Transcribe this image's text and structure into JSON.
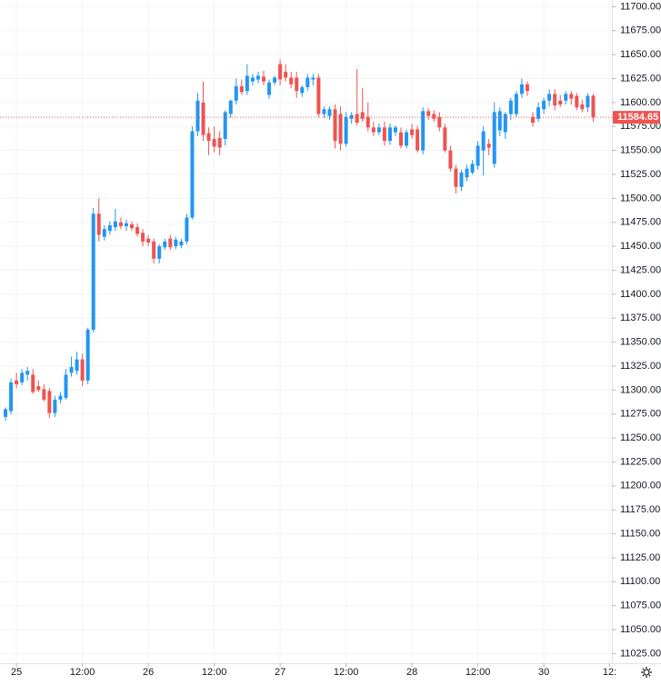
{
  "chart_data": {
    "type": "candlestick",
    "up_color": "#2196f3",
    "down_color": "#ef5350",
    "x": [
      -2,
      -1,
      0,
      1,
      2,
      3,
      4,
      5,
      6,
      7,
      8,
      9,
      10,
      11,
      12,
      13,
      14,
      15,
      16,
      17,
      18,
      19,
      20,
      21,
      22,
      23,
      24,
      25,
      26,
      27,
      28,
      29,
      30,
      31,
      32,
      33,
      34,
      35,
      36,
      37,
      38,
      39,
      40,
      41,
      42,
      43,
      44,
      45,
      46,
      47,
      48,
      49,
      50,
      51,
      52,
      53,
      54,
      55,
      56,
      57,
      58,
      59,
      60,
      61,
      62,
      63,
      64,
      65,
      66,
      67,
      68,
      69,
      70,
      71,
      72,
      73,
      74,
      75,
      76,
      77,
      78,
      79,
      80,
      81,
      82,
      83,
      84,
      85,
      86,
      87,
      88,
      89,
      90,
      91,
      92,
      93,
      94,
      95,
      96,
      97,
      98,
      99,
      100,
      101,
      102,
      103,
      104,
      105
    ],
    "open": [
      11272,
      11278,
      11310,
      11308,
      11316,
      11316,
      11304,
      11301,
      11299,
      11276,
      11290,
      11292,
      11318,
      11320,
      11332,
      11310,
      11363,
      11484,
      11460,
      11466,
      11470,
      11475,
      11471,
      11473,
      11470,
      11464,
      11458,
      11455,
      11437,
      11449,
      11458,
      11450,
      11451,
      11455,
      11480,
      11570,
      11600,
      11568,
      11562,
      11563,
      11562,
      11588,
      11602,
      11617,
      11612,
      11622,
      11624,
      11627,
      11608,
      11621,
      11640,
      11632,
      11626,
      11626,
      11610,
      11616,
      11624,
      11626,
      11588,
      11586,
      11593,
      11588,
      11557,
      11583,
      11588,
      11590,
      11585,
      11574,
      11569,
      11574,
      11560,
      11569,
      11569,
      11555,
      11572,
      11572,
      11550,
      11591,
      11588,
      11585,
      11574,
      11550,
      11531,
      11512,
      11522,
      11527,
      11534,
      11550,
      11557,
      11536,
      11571,
      11569,
      11588,
      11588,
      11609,
      11619,
      11585,
      11583,
      11593,
      11602,
      11609,
      11602,
      11602,
      11609,
      11607,
      11598,
      11595,
      11607
    ],
    "high": [
      11282,
      11312,
      11318,
      11322,
      11324,
      11322,
      11310,
      11306,
      11302,
      11294,
      11298,
      11322,
      11335,
      11340,
      11338,
      11365,
      11490,
      11500,
      11472,
      11476,
      11489,
      11480,
      11478,
      11476,
      11474,
      11468,
      11462,
      11458,
      11452,
      11458,
      11462,
      11460,
      11458,
      11484,
      11575,
      11610,
      11622,
      11574,
      11575,
      11570,
      11592,
      11603,
      11625,
      11624,
      11640,
      11630,
      11632,
      11633,
      11624,
      11628,
      11645,
      11640,
      11632,
      11632,
      11618,
      11630,
      11630,
      11630,
      11596,
      11596,
      11598,
      11596,
      11590,
      11590,
      11635,
      11615,
      11600,
      11580,
      11578,
      11580,
      11578,
      11576,
      11574,
      11572,
      11578,
      11576,
      11595,
      11594,
      11592,
      11590,
      11578,
      11555,
      11535,
      11530,
      11535,
      11540,
      11560,
      11575,
      11562,
      11600,
      11595,
      11590,
      11605,
      11612,
      11625,
      11622,
      11590,
      11600,
      11605,
      11614,
      11614,
      11608,
      11612,
      11612,
      11610,
      11603,
      11610,
      11609
    ],
    "low": [
      11268,
      11275,
      11302,
      11305,
      11310,
      11296,
      11298,
      11288,
      11271,
      11272,
      11286,
      11290,
      11314,
      11316,
      11304,
      11306,
      11360,
      11455,
      11456,
      11462,
      11466,
      11468,
      11466,
      11466,
      11460,
      11450,
      11450,
      11432,
      11432,
      11446,
      11446,
      11447,
      11448,
      11452,
      11478,
      11565,
      11560,
      11545,
      11548,
      11545,
      11555,
      11584,
      11598,
      11608,
      11608,
      11618,
      11620,
      11618,
      11604,
      11618,
      11618,
      11622,
      11615,
      11605,
      11606,
      11612,
      11618,
      11585,
      11584,
      11582,
      11552,
      11550,
      11554,
      11578,
      11576,
      11580,
      11570,
      11565,
      11566,
      11555,
      11556,
      11565,
      11552,
      11552,
      11562,
      11548,
      11546,
      11582,
      11580,
      11570,
      11548,
      11528,
      11505,
      11508,
      11518,
      11525,
      11530,
      11524,
      11545,
      11532,
      11565,
      11562,
      11582,
      11585,
      11605,
      11607,
      11575,
      11580,
      11588,
      11596,
      11592,
      11595,
      11598,
      11598,
      11592,
      11590,
      11590,
      11580
    ],
    "close": [
      11280,
      11308,
      11306,
      11318,
      11320,
      11298,
      11300,
      11290,
      11276,
      11290,
      11294,
      11316,
      11324,
      11332,
      11310,
      11363,
      11484,
      11462,
      11468,
      11472,
      11476,
      11471,
      11474,
      11469,
      11463,
      11455,
      11454,
      11437,
      11450,
      11455,
      11449,
      11457,
      11455,
      11480,
      11570,
      11602,
      11566,
      11560,
      11554,
      11553,
      11590,
      11602,
      11617,
      11611,
      11628,
      11626,
      11628,
      11622,
      11621,
      11626,
      11624,
      11626,
      11619,
      11612,
      11616,
      11626,
      11626,
      11588,
      11593,
      11593,
      11560,
      11557,
      11585,
      11587,
      11579,
      11583,
      11574,
      11569,
      11574,
      11560,
      11574,
      11574,
      11555,
      11569,
      11566,
      11550,
      11591,
      11586,
      11583,
      11574,
      11550,
      11531,
      11512,
      11527,
      11531,
      11536,
      11555,
      11570,
      11553,
      11590,
      11591,
      11588,
      11602,
      11609,
      11619,
      11612,
      11579,
      11595,
      11602,
      11609,
      11597,
      11598,
      11609,
      11604,
      11595,
      11593,
      11607,
      11584.65
    ],
    "last_price": 11584.65,
    "xlim": [
      -3,
      108.4
    ],
    "xticks": [
      {
        "value": 0,
        "label": "25"
      },
      {
        "value": 12,
        "label": "12:00"
      },
      {
        "value": 24,
        "label": "26"
      },
      {
        "value": 36,
        "label": "12:00"
      },
      {
        "value": 48,
        "label": "27"
      },
      {
        "value": 60,
        "label": "12:00"
      },
      {
        "value": 72,
        "label": "28"
      },
      {
        "value": 84,
        "label": "12:00"
      },
      {
        "value": 96,
        "label": "30"
      },
      {
        "value": 108,
        "label": "12:"
      }
    ],
    "ylim": [
      11015,
      11707
    ],
    "yticks": [
      {
        "value": 11025,
        "label": "11025.00"
      },
      {
        "value": 11050,
        "label": "11050.00"
      },
      {
        "value": 11075,
        "label": "11075.00"
      },
      {
        "value": 11100,
        "label": "11100.00"
      },
      {
        "value": 11125,
        "label": "11125.00"
      },
      {
        "value": 11150,
        "label": "11150.00"
      },
      {
        "value": 11175,
        "label": "11175.00"
      },
      {
        "value": 11200,
        "label": "11200.00"
      },
      {
        "value": 11225,
        "label": "11225.00"
      },
      {
        "value": 11250,
        "label": "11250.00"
      },
      {
        "value": 11275,
        "label": "11275.00"
      },
      {
        "value": 11300,
        "label": "11300.00"
      },
      {
        "value": 11325,
        "label": "11325.00"
      },
      {
        "value": 11350,
        "label": "11350.00"
      },
      {
        "value": 11375,
        "label": "11375.00"
      },
      {
        "value": 11400,
        "label": "11400.00"
      },
      {
        "value": 11425,
        "label": "11425.00"
      },
      {
        "value": 11450,
        "label": "11450.00"
      },
      {
        "value": 11475,
        "label": "11475.00"
      },
      {
        "value": 11500,
        "label": "11500.00"
      },
      {
        "value": 11525,
        "label": "11525.00"
      },
      {
        "value": 11550,
        "label": "11550.00"
      },
      {
        "value": 11575,
        "label": "11575.00"
      },
      {
        "value": 11600,
        "label": "11600.00"
      },
      {
        "value": 11625,
        "label": "11625.00"
      },
      {
        "value": 11650,
        "label": "11650.00"
      },
      {
        "value": 11675,
        "label": "11675.00"
      },
      {
        "value": 11700,
        "label": "11700.00"
      }
    ],
    "grid": true
  }
}
